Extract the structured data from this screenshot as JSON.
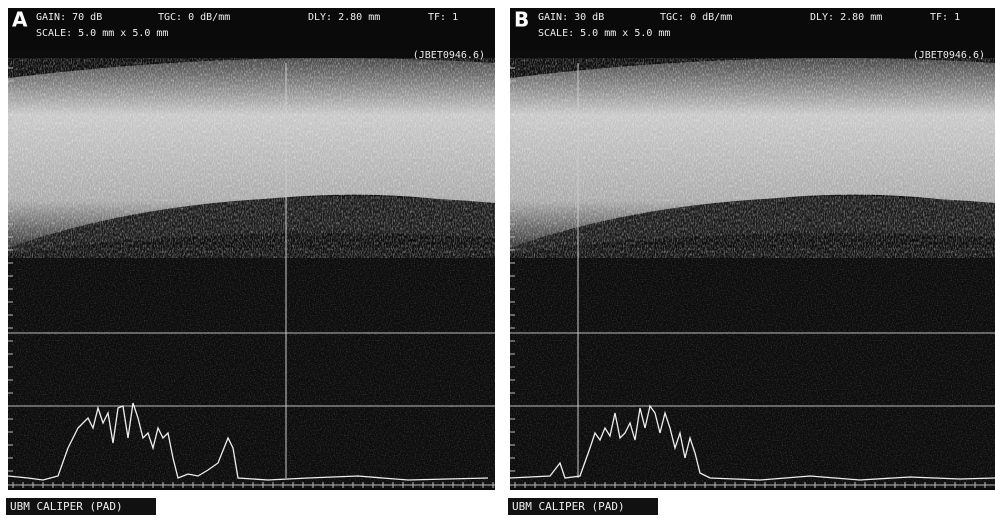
{
  "panels": [
    {
      "label": "A",
      "gain": "GAIN: 70 dB",
      "tgc": "TGC: 0 dB/mm",
      "dly": "DLY: 2.80 mm",
      "tf": "TF: 1",
      "scale": "SCALE: 5.0 mm x 5.0 mm",
      "file": "(JBET0946.6)",
      "footer": "UBM CALIPER (PAD)"
    },
    {
      "label": "B",
      "gain": "GAIN: 30 dB",
      "tgc": "TGC: 0 dB/mm",
      "dly": "DLY: 2.80 mm",
      "tf": "TF: 1",
      "scale": "SCALE: 5.0 mm x 5.0 mm",
      "file": "(JBET0946.6)",
      "footer": "UBM CALIPER (PAD)"
    }
  ]
}
